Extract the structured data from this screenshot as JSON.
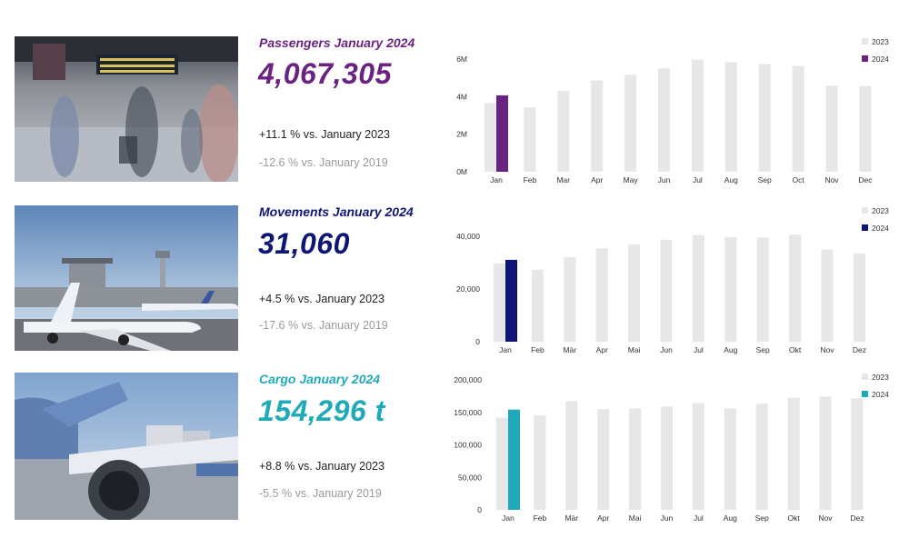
{
  "colors": {
    "bar_2023": "#e7e7ea",
    "passengers": "#6b2381",
    "movements": "#0d1675",
    "cargo": "#20aab9",
    "compare_2019": "#9a9a9a"
  },
  "panels": [
    {
      "title": "Passengers January 2024",
      "value": "4,067,305",
      "change_2023": "+11.1 % vs. January 2023",
      "change_2019": "-12.6 % vs. January 2019"
    },
    {
      "title": "Movements January 2024",
      "value": "31,060",
      "change_2023": "+4.5 % vs. January 2023",
      "change_2019": "-17.6 % vs. January 2019"
    },
    {
      "title": "Cargo January 2024",
      "value": "154,296 t",
      "change_2023": "+8.8 % vs. January 2023",
      "change_2019": "-5.5 % vs. January 2019"
    }
  ],
  "chart_data": [
    {
      "type": "bar",
      "categories": [
        "Jan",
        "Feb",
        "Mar",
        "Apr",
        "May",
        "Jun",
        "Jul",
        "Aug",
        "Sep",
        "Oct",
        "Nov",
        "Dec"
      ],
      "series": [
        {
          "name": "2023",
          "values": [
            3660000,
            3430000,
            4300000,
            4860000,
            5160000,
            5500000,
            5970000,
            5830000,
            5740000,
            5640000,
            4590000,
            4570000
          ]
        },
        {
          "name": "2024",
          "values": [
            4067305,
            null,
            null,
            null,
            null,
            null,
            null,
            null,
            null,
            null,
            null,
            null
          ]
        }
      ],
      "yticks": [
        0,
        2000000,
        4000000,
        6000000
      ],
      "ytick_labels": [
        "0M",
        "2M",
        "4M",
        "6M"
      ],
      "ylim": [
        0,
        6000000
      ],
      "legend": "top-right",
      "grid": false
    },
    {
      "type": "bar",
      "categories": [
        "Jan",
        "Feb",
        "Mär",
        "Apr",
        "Mai",
        "Jun",
        "Jul",
        "Aug",
        "Sep",
        "Okt",
        "Nov",
        "Dez"
      ],
      "series": [
        {
          "name": "2023",
          "values": [
            29700,
            27300,
            32100,
            35400,
            36900,
            38700,
            40500,
            39700,
            39500,
            40600,
            35000,
            33500
          ]
        },
        {
          "name": "2024",
          "values": [
            31060,
            null,
            null,
            null,
            null,
            null,
            null,
            null,
            null,
            null,
            null,
            null
          ]
        }
      ],
      "yticks": [
        0,
        20000,
        40000
      ],
      "ytick_labels": [
        "0",
        "20,000",
        "40,000"
      ],
      "ylim": [
        0,
        40000
      ],
      "legend": "top-right",
      "grid": false
    },
    {
      "type": "bar",
      "categories": [
        "Jan",
        "Feb",
        "Mär",
        "Apr",
        "Mai",
        "Jun",
        "Jul",
        "Aug",
        "Sep",
        "Okt",
        "Nov",
        "Dez"
      ],
      "series": [
        {
          "name": "2023",
          "values": [
            141800,
            145300,
            167200,
            155100,
            156100,
            159100,
            164300,
            156300,
            163300,
            172300,
            174300,
            171300
          ]
        },
        {
          "name": "2024",
          "values": [
            154296,
            null,
            null,
            null,
            null,
            null,
            null,
            null,
            null,
            null,
            null,
            null
          ]
        }
      ],
      "yticks": [
        0,
        50000,
        100000,
        150000,
        200000
      ],
      "ytick_labels": [
        "0",
        "50,000",
        "100,000",
        "150,000",
        "200,000"
      ],
      "ylim": [
        0,
        200000
      ],
      "legend": "top-right",
      "grid": false
    }
  ]
}
